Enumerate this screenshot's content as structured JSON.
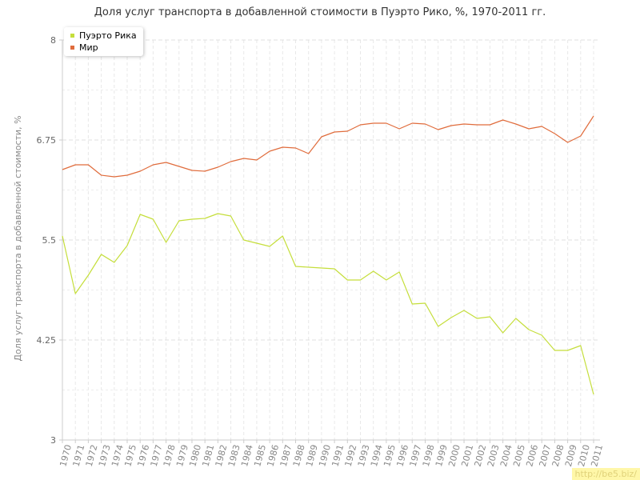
{
  "watermark": "http://be5.biz/",
  "chart_data": {
    "type": "line",
    "title": "Доля услуг транспорта в добавленной стоимости в Пуэрто Рико, %, 1970-2011 гг.",
    "ylabel": "Доля услуг транспорта в добавленной стоимости, %",
    "xlabel": "",
    "ylim": [
      3,
      8
    ],
    "yticks": [
      3,
      4.25,
      5.5,
      6.75,
      8
    ],
    "ytick_labels": [
      "3",
      "4.25",
      "5.5",
      "6.75",
      "8"
    ],
    "grid": true,
    "legend_position": "top-left",
    "categories": [
      "1970",
      "1971",
      "1972",
      "1973",
      "1974",
      "1975",
      "1976",
      "1977",
      "1978",
      "1979",
      "1980",
      "1981",
      "1982",
      "1983",
      "1984",
      "1985",
      "1986",
      "1987",
      "1988",
      "1989",
      "1990",
      "1991",
      "1992",
      "1993",
      "1994",
      "1995",
      "1996",
      "1997",
      "1998",
      "1999",
      "2000",
      "2001",
      "2002",
      "2003",
      "2004",
      "2005",
      "2006",
      "2007",
      "2008",
      "2009",
      "2010",
      "2011"
    ],
    "series": [
      {
        "name": "Пуэрто Рика",
        "color": "#c5de3b",
        "values": [
          5.55,
          4.83,
          5.06,
          5.32,
          5.22,
          5.43,
          5.82,
          5.76,
          5.47,
          5.74,
          5.76,
          5.77,
          5.83,
          5.8,
          5.5,
          5.46,
          5.42,
          5.55,
          5.17,
          5.16,
          5.15,
          5.14,
          5.0,
          5.0,
          5.11,
          5.0,
          5.1,
          4.7,
          4.71,
          4.42,
          4.53,
          4.62,
          4.52,
          4.54,
          4.34,
          4.52,
          4.38,
          4.31,
          4.12,
          4.12,
          4.18,
          3.57
        ]
      },
      {
        "name": "Мир",
        "color": "#e06c3c",
        "values": [
          6.38,
          6.44,
          6.44,
          6.31,
          6.29,
          6.31,
          6.36,
          6.44,
          6.47,
          6.42,
          6.37,
          6.36,
          6.41,
          6.48,
          6.52,
          6.5,
          6.61,
          6.66,
          6.65,
          6.58,
          6.79,
          6.85,
          6.86,
          6.94,
          6.96,
          6.96,
          6.89,
          6.96,
          6.95,
          6.88,
          6.93,
          6.95,
          6.94,
          6.94,
          7.0,
          6.95,
          6.89,
          6.92,
          6.83,
          6.72,
          6.8,
          7.05
        ]
      }
    ]
  }
}
